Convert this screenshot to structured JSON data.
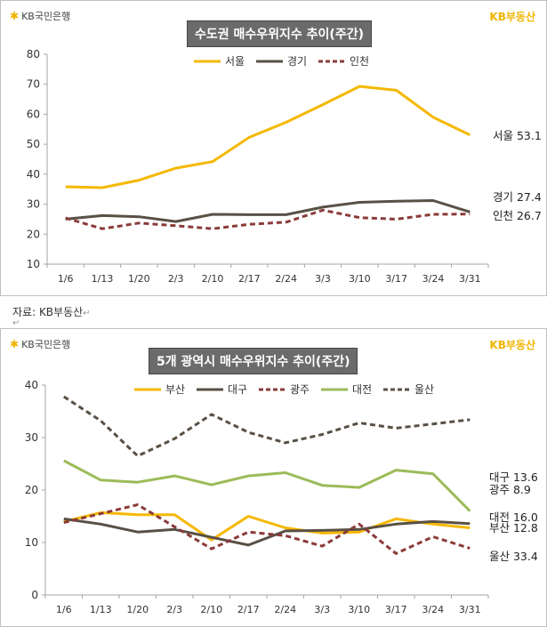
{
  "source_note": "자료: KB부동산",
  "return_mark": "↵",
  "bank_logo": "KB국민은행",
  "brand": "KB부동산",
  "colors": {
    "seoul": "#f5b800",
    "gyeonggi": "#595045",
    "incheon": "#8b3a3a",
    "busan": "#f5b800",
    "daegu": "#595045",
    "gwangju": "#8b3a3a",
    "daejeon": "#9bbb59",
    "ulsan": "#595045"
  },
  "chart_data": [
    {
      "type": "line",
      "title": "수도권 매수우위지수 추이(주간)",
      "categories": [
        "1/6",
        "1/13",
        "1/20",
        "2/3",
        "2/10",
        "2/17",
        "2/24",
        "3/3",
        "3/10",
        "3/17",
        "3/24",
        "3/31"
      ],
      "ylim": [
        10,
        80
      ],
      "yticks": [
        "10",
        "20",
        "30",
        "40",
        "50",
        "60",
        "70",
        "80"
      ],
      "series": [
        {
          "name": "서울",
          "values": [
            35.8,
            35.5,
            38.0,
            42.0,
            44.2,
            52.3,
            57.3,
            63.2,
            69.3,
            68.0,
            59.0,
            53.1
          ],
          "end_label": "서울 53.1",
          "dashed": false
        },
        {
          "name": "경기",
          "values": [
            25.0,
            26.2,
            25.8,
            24.2,
            26.6,
            26.5,
            26.5,
            29.0,
            30.6,
            31.0,
            31.2,
            27.4
          ],
          "end_label": "경기 27.4",
          "dashed": false
        },
        {
          "name": "인천",
          "values": [
            25.4,
            21.8,
            23.7,
            22.8,
            21.8,
            23.3,
            24.0,
            28.0,
            25.5,
            25.0,
            26.6,
            26.7
          ],
          "end_label": "인천 26.7",
          "dashed": true
        }
      ]
    },
    {
      "type": "line",
      "title": "5개 광역시 매수우위지수 추이(주간)",
      "categories": [
        "1/6",
        "1/13",
        "1/20",
        "2/3",
        "2/10",
        "2/17",
        "2/24",
        "3/3",
        "3/10",
        "3/17",
        "3/24",
        "3/31"
      ],
      "ylim": [
        0,
        40
      ],
      "yticks": [
        "0",
        "10",
        "20",
        "30",
        "40"
      ],
      "series": [
        {
          "name": "부산",
          "values": [
            14.0,
            15.7,
            15.3,
            15.3,
            10.5,
            15.0,
            12.8,
            11.8,
            12.0,
            14.5,
            13.5,
            12.8
          ],
          "end_label": "부산 12.8",
          "dashed": false
        },
        {
          "name": "대구",
          "values": [
            14.5,
            13.5,
            12.0,
            12.5,
            11.0,
            9.5,
            12.2,
            12.3,
            12.5,
            13.5,
            14.0,
            13.6
          ],
          "end_label": "대구 13.6",
          "dashed": false
        },
        {
          "name": "광주",
          "values": [
            13.8,
            15.5,
            17.2,
            13.0,
            8.8,
            12.0,
            11.3,
            9.3,
            13.5,
            7.9,
            11.1,
            8.9
          ],
          "end_label": "광주 8.9",
          "dashed": true
        },
        {
          "name": "대전",
          "values": [
            25.6,
            21.9,
            21.5,
            22.7,
            21.0,
            22.7,
            23.3,
            20.9,
            20.5,
            23.8,
            23.1,
            16.0
          ],
          "end_label": "대전 16.0",
          "dashed": false
        },
        {
          "name": "울산",
          "values": [
            37.8,
            33.2,
            26.5,
            29.8,
            34.4,
            31.0,
            29.0,
            30.6,
            32.8,
            31.8,
            32.6,
            33.4
          ],
          "end_label": "울산 33.4",
          "dashed": true
        }
      ]
    }
  ]
}
